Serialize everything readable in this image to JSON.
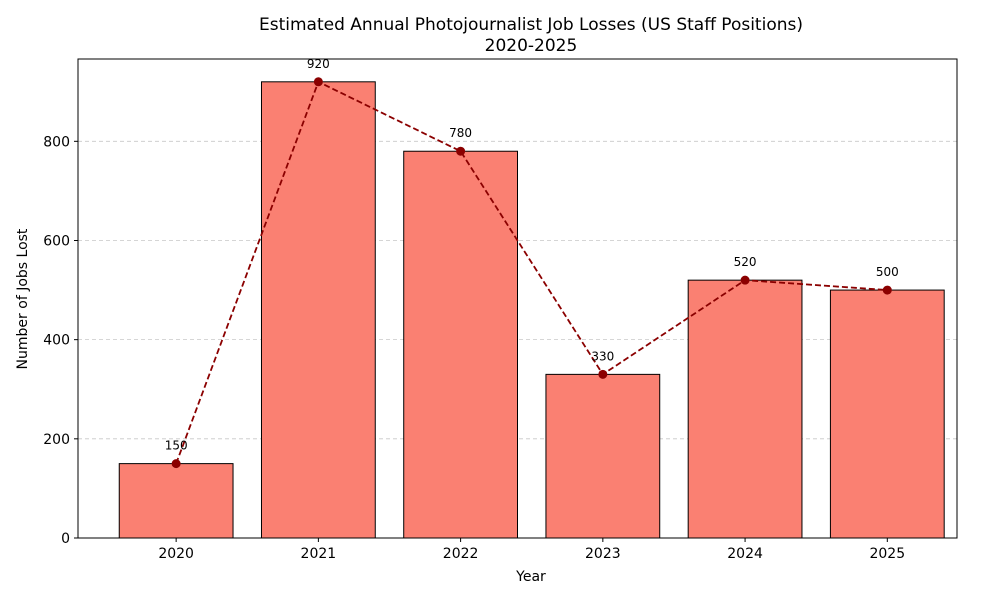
{
  "chart_data": {
    "type": "bar",
    "title": "Estimated Annual Photojournalist Job Losses (US Staff Positions)",
    "subtitle": "2020-2025",
    "xlabel": "Year",
    "ylabel": "Number of Jobs Lost",
    "categories": [
      "2020",
      "2021",
      "2022",
      "2023",
      "2024",
      "2025"
    ],
    "values": [
      150,
      920,
      780,
      330,
      520,
      500
    ],
    "data_labels": [
      "150",
      "920",
      "780",
      "330",
      "520",
      "500"
    ],
    "overlay_line": {
      "style": "dashed",
      "marker": "circle",
      "color": "#8b0000"
    },
    "ylim": [
      0,
      966
    ],
    "yticks": [
      0,
      200,
      400,
      600,
      800
    ],
    "grid": "y-dashed",
    "bar_color": "#fa8072",
    "bar_edge_color": "#000000"
  }
}
